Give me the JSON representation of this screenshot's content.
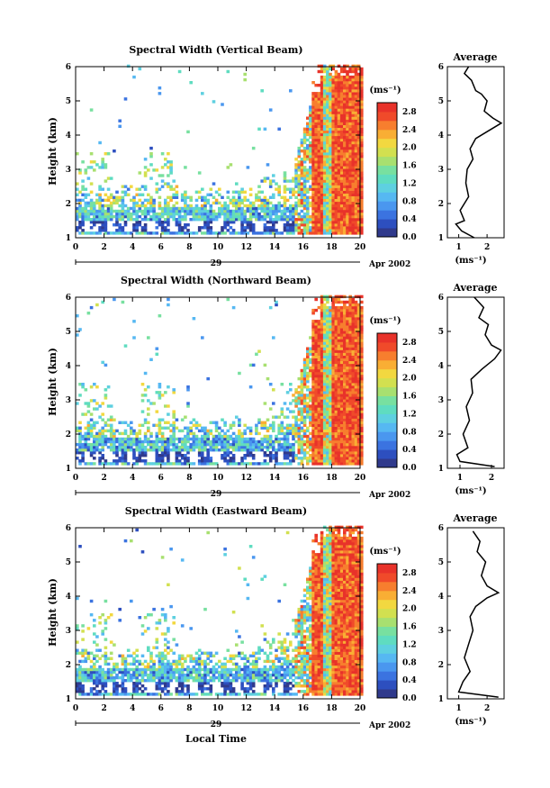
{
  "palette": {
    "levels": [
      "#303a8c",
      "#2d4fbf",
      "#3b73e0",
      "#4a97ef",
      "#56b8f2",
      "#5ed0e0",
      "#5fdcc0",
      "#78e0a0",
      "#a8e070",
      "#d2e050",
      "#f2d840",
      "#f9ae34",
      "#f77e2e",
      "#f04a2a",
      "#e8322a"
    ],
    "profile": "#000000"
  },
  "chart_data": [
    {
      "type": "heatmap",
      "id": "vertical",
      "title": "Spectral Width (Vertical Beam)",
      "ylabel": "Height (km)",
      "x_ticks": [
        "0",
        "2",
        "4",
        "6",
        "8",
        "10",
        "12",
        "14",
        "16",
        "18",
        "20"
      ],
      "y_ticks": [
        "1",
        "2",
        "3",
        "4",
        "5",
        "6"
      ],
      "xlim": [
        0,
        20
      ],
      "ylim": [
        1,
        6
      ],
      "date_day": "29",
      "date_month": "Apr 2002",
      "colorbar": {
        "unit": "(ms⁻¹)",
        "ticks": [
          "2.8",
          "2.4",
          "2.0",
          "1.6",
          "1.2",
          "0.8",
          "0.4",
          "0.0"
        ],
        "range": [
          0,
          3
        ]
      },
      "average": {
        "title": "Average",
        "xlim": [
          0.6,
          2.6
        ],
        "ylim": [
          1,
          6
        ],
        "x_ticks": [
          "1",
          "2"
        ],
        "y_ticks": [
          "1",
          "2",
          "3",
          "4",
          "5",
          "6"
        ],
        "xlabel": "(ms⁻¹)",
        "profile": [
          [
            1.55,
            1.0
          ],
          [
            1.1,
            1.2
          ],
          [
            0.9,
            1.4
          ],
          [
            1.2,
            1.5
          ],
          [
            1.05,
            1.8
          ],
          [
            1.35,
            2.2
          ],
          [
            1.25,
            2.6
          ],
          [
            1.3,
            3.0
          ],
          [
            1.5,
            3.3
          ],
          [
            1.4,
            3.6
          ],
          [
            1.6,
            3.9
          ],
          [
            2.0,
            4.1
          ],
          [
            2.5,
            4.35
          ],
          [
            2.2,
            4.5
          ],
          [
            1.9,
            4.7
          ],
          [
            2.0,
            5.0
          ],
          [
            1.8,
            5.2
          ],
          [
            1.6,
            5.3
          ],
          [
            1.45,
            5.6
          ],
          [
            1.2,
            5.8
          ],
          [
            1.35,
            6.0
          ]
        ]
      }
    },
    {
      "type": "heatmap",
      "id": "northward",
      "title": "Spectral Width (Northward Beam)",
      "ylabel": "Height (km)",
      "x_ticks": [
        "0",
        "2",
        "4",
        "6",
        "8",
        "10",
        "12",
        "14",
        "16",
        "18",
        "20"
      ],
      "y_ticks": [
        "1",
        "2",
        "3",
        "4",
        "5",
        "6"
      ],
      "xlim": [
        0,
        20
      ],
      "ylim": [
        1,
        6
      ],
      "date_day": "29",
      "date_month": "Apr 2002",
      "colorbar": {
        "unit": "(ms⁻¹)",
        "ticks": [
          "2.8",
          "2.4",
          "2.0",
          "1.6",
          "1.2",
          "0.8",
          "0.4",
          "0.0"
        ],
        "range": [
          0,
          3
        ]
      },
      "average": {
        "title": "Average",
        "xlim": [
          0.6,
          2.4
        ],
        "ylim": [
          1,
          6
        ],
        "x_ticks": [
          "1",
          "2"
        ],
        "y_ticks": [
          "1",
          "2",
          "3",
          "4",
          "5",
          "6"
        ],
        "xlabel": "(ms⁻¹)",
        "profile": [
          [
            2.1,
            1.05
          ],
          [
            1.0,
            1.2
          ],
          [
            0.9,
            1.4
          ],
          [
            1.25,
            1.6
          ],
          [
            1.1,
            2.0
          ],
          [
            1.3,
            2.4
          ],
          [
            1.2,
            2.8
          ],
          [
            1.4,
            3.2
          ],
          [
            1.35,
            3.6
          ],
          [
            1.7,
            3.9
          ],
          [
            2.1,
            4.2
          ],
          [
            2.3,
            4.45
          ],
          [
            2.0,
            4.6
          ],
          [
            1.8,
            4.9
          ],
          [
            1.9,
            5.2
          ],
          [
            1.6,
            5.4
          ],
          [
            1.75,
            5.7
          ],
          [
            1.45,
            6.0
          ]
        ]
      }
    },
    {
      "type": "heatmap",
      "id": "eastward",
      "title": "Spectral Width (Eastward Beam)",
      "ylabel": "Height (km)",
      "xlabel": "Local Time",
      "x_ticks": [
        "0",
        "2",
        "4",
        "6",
        "8",
        "10",
        "12",
        "14",
        "16",
        "18",
        "20"
      ],
      "y_ticks": [
        "1",
        "2",
        "3",
        "4",
        "5",
        "6"
      ],
      "xlim": [
        0,
        20
      ],
      "ylim": [
        1,
        6
      ],
      "date_day": "29",
      "date_month": "Apr 2002",
      "colorbar": {
        "unit": "(ms⁻¹)",
        "ticks": [
          "2.8",
          "2.4",
          "2.0",
          "1.6",
          "1.2",
          "0.8",
          "0.4",
          "0.0"
        ],
        "range": [
          0,
          3
        ]
      },
      "average": {
        "title": "Average",
        "xlim": [
          0.6,
          2.6
        ],
        "ylim": [
          1,
          6
        ],
        "x_ticks": [
          "1",
          "2"
        ],
        "y_ticks": [
          "1",
          "2",
          "3",
          "4",
          "5",
          "6"
        ],
        "xlabel": "(ms⁻¹)",
        "profile": [
          [
            2.4,
            1.05
          ],
          [
            1.0,
            1.2
          ],
          [
            1.15,
            1.5
          ],
          [
            1.4,
            1.8
          ],
          [
            1.2,
            2.2
          ],
          [
            1.35,
            2.6
          ],
          [
            1.5,
            3.0
          ],
          [
            1.4,
            3.4
          ],
          [
            1.6,
            3.7
          ],
          [
            2.0,
            3.95
          ],
          [
            2.4,
            4.1
          ],
          [
            2.0,
            4.3
          ],
          [
            1.8,
            4.6
          ],
          [
            1.95,
            5.0
          ],
          [
            1.65,
            5.3
          ],
          [
            1.75,
            5.6
          ],
          [
            1.5,
            5.9
          ]
        ]
      }
    }
  ]
}
